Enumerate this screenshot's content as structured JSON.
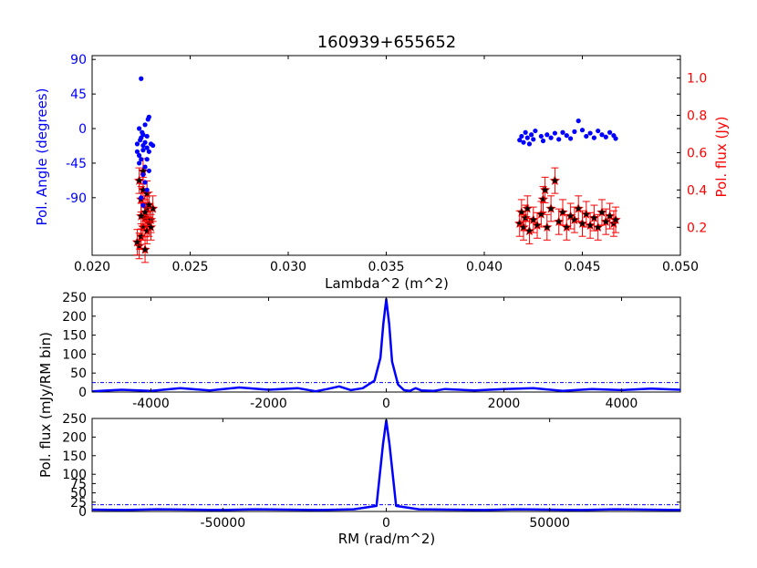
{
  "chart_data": [
    {
      "type": "scatter",
      "title": "160939+655652",
      "xlabel": "Lambda^2 (m^2)",
      "xlim": [
        0.02,
        0.05
      ],
      "x_ticks": [
        "0.020",
        "0.025",
        "0.030",
        "0.035",
        "0.040",
        "0.045",
        "0.050"
      ],
      "ylabel_left": "Pol. Angle (degrees)",
      "ylabel_left_color": "#0000ff",
      "ylim_left": [
        -165,
        95
      ],
      "y_ticks_left": [
        "90",
        "45",
        "0",
        "-45",
        "-90"
      ],
      "ylabel_right": "Pol. flux (Jy)",
      "ylabel_right_color": "#ff0000",
      "ylim_right": [
        0.05,
        1.12
      ],
      "y_ticks_right": [
        "0.2",
        "0.4",
        "0.6",
        "0.8",
        "1.0"
      ],
      "series": [
        {
          "color": "#0000ff",
          "marker": "dot",
          "points": [
            [
              0.0225,
              65
            ],
            [
              0.0224,
              0
            ],
            [
              0.02255,
              -5
            ],
            [
              0.0226,
              -8
            ],
            [
              0.02245,
              -15
            ],
            [
              0.0227,
              -18
            ],
            [
              0.0226,
              -22
            ],
            [
              0.0228,
              -10
            ],
            [
              0.02285,
              12
            ],
            [
              0.0229,
              15
            ],
            [
              0.0223,
              -30
            ],
            [
              0.0224,
              -35
            ],
            [
              0.0225,
              -40
            ],
            [
              0.0226,
              -28
            ],
            [
              0.0227,
              -50
            ],
            [
              0.0228,
              -25
            ],
            [
              0.0229,
              -30
            ],
            [
              0.023,
              -20
            ],
            [
              0.0231,
              -22
            ],
            [
              0.0226,
              -60
            ],
            [
              0.0227,
              -70
            ],
            [
              0.0228,
              -80
            ],
            [
              0.0225,
              -90
            ],
            [
              0.0226,
              -100
            ],
            [
              0.0224,
              -45
            ],
            [
              0.0229,
              -55
            ],
            [
              0.0223,
              -20
            ],
            [
              0.0228,
              -40
            ],
            [
              0.0225,
              -12
            ],
            [
              0.0227,
              5
            ],
            [
              0.0418,
              -15
            ],
            [
              0.0419,
              -10
            ],
            [
              0.042,
              -18
            ],
            [
              0.0421,
              -5
            ],
            [
              0.0422,
              -12
            ],
            [
              0.0423,
              -20
            ],
            [
              0.0424,
              -8
            ],
            [
              0.0425,
              -14
            ],
            [
              0.0426,
              -3
            ],
            [
              0.0429,
              -10
            ],
            [
              0.043,
              -16
            ],
            [
              0.0432,
              -8
            ],
            [
              0.0434,
              -12
            ],
            [
              0.0436,
              -6
            ],
            [
              0.0438,
              -14
            ],
            [
              0.044,
              -5
            ],
            [
              0.0442,
              -9
            ],
            [
              0.0444,
              -13
            ],
            [
              0.0446,
              -4
            ],
            [
              0.0448,
              10
            ],
            [
              0.045,
              -2
            ],
            [
              0.0452,
              -10
            ],
            [
              0.0454,
              -6
            ],
            [
              0.0456,
              -12
            ],
            [
              0.0458,
              -3
            ],
            [
              0.046,
              -8
            ],
            [
              0.0462,
              -11
            ],
            [
              0.0464,
              -5
            ],
            [
              0.0466,
              -9
            ],
            [
              0.0467,
              -13
            ]
          ]
        },
        {
          "color": "#ff0000",
          "marker": "star-errorbar",
          "points": [
            [
              0.0224,
              0.1
            ],
            [
              0.0225,
              0.15
            ],
            [
              0.0226,
              0.2
            ],
            [
              0.0227,
              0.25
            ],
            [
              0.0228,
              0.3
            ],
            [
              0.0229,
              0.22
            ],
            [
              0.0225,
              0.35
            ],
            [
              0.0226,
              0.4
            ],
            [
              0.0227,
              0.28
            ],
            [
              0.0228,
              0.18
            ],
            [
              0.023,
              0.24
            ],
            [
              0.0231,
              0.3
            ],
            [
              0.0224,
              0.45
            ],
            [
              0.0226,
              0.5
            ],
            [
              0.0228,
              0.38
            ],
            [
              0.0229,
              0.32
            ],
            [
              0.0223,
              0.12
            ],
            [
              0.0227,
              0.08
            ],
            [
              0.0225,
              0.26
            ],
            [
              0.023,
              0.2
            ],
            [
              0.0418,
              0.22
            ],
            [
              0.0419,
              0.28
            ],
            [
              0.042,
              0.2
            ],
            [
              0.0421,
              0.25
            ],
            [
              0.0422,
              0.3
            ],
            [
              0.0423,
              0.18
            ],
            [
              0.0425,
              0.24
            ],
            [
              0.0427,
              0.21
            ],
            [
              0.0429,
              0.27
            ],
            [
              0.043,
              0.35
            ],
            [
              0.0432,
              0.2
            ],
            [
              0.0434,
              0.3
            ],
            [
              0.0436,
              0.45
            ],
            [
              0.0438,
              0.23
            ],
            [
              0.044,
              0.28
            ],
            [
              0.0442,
              0.2
            ],
            [
              0.0444,
              0.26
            ],
            [
              0.0446,
              0.24
            ],
            [
              0.0448,
              0.3
            ],
            [
              0.045,
              0.22
            ],
            [
              0.0452,
              0.27
            ],
            [
              0.0454,
              0.21
            ],
            [
              0.0456,
              0.25
            ],
            [
              0.0458,
              0.2
            ],
            [
              0.046,
              0.28
            ],
            [
              0.0462,
              0.23
            ],
            [
              0.0464,
              0.26
            ],
            [
              0.0466,
              0.22
            ],
            [
              0.0467,
              0.24
            ],
            [
              0.0431,
              0.4
            ]
          ]
        }
      ]
    },
    {
      "type": "line",
      "xlim": [
        -5000,
        5000
      ],
      "x_ticks": [
        "-4000",
        "-2000",
        "0",
        "2000",
        "4000"
      ],
      "ylim": [
        0,
        250
      ],
      "y_ticks": [
        "0",
        "50",
        "100",
        "150",
        "200",
        "250"
      ],
      "threshold": 25,
      "series": [
        {
          "color": "#0000ff",
          "x": [
            -5000,
            -4500,
            -4000,
            -3500,
            -3000,
            -2500,
            -2000,
            -1500,
            -1200,
            -1000,
            -800,
            -600,
            -400,
            -300,
            -200,
            -100,
            -50,
            0,
            50,
            100,
            200,
            300,
            400,
            500,
            600,
            800,
            1000,
            1500,
            2000,
            2500,
            3000,
            3500,
            4000,
            4500,
            5000
          ],
          "y": [
            2,
            6,
            3,
            10,
            4,
            12,
            6,
            10,
            2,
            8,
            15,
            5,
            10,
            20,
            30,
            90,
            180,
            245,
            180,
            80,
            20,
            5,
            3,
            10,
            4,
            3,
            8,
            4,
            8,
            10,
            3,
            8,
            5,
            9,
            6
          ]
        }
      ]
    },
    {
      "type": "line",
      "xlabel": "RM (rad/m^2)",
      "xlim": [
        -90000,
        90000
      ],
      "x_ticks": [
        "-50000",
        "0",
        "50000"
      ],
      "ylim": [
        0,
        250
      ],
      "y_ticks": [
        "0",
        "25",
        "50",
        "75",
        "100",
        "150",
        "200",
        "250"
      ],
      "threshold": 18,
      "series": [
        {
          "color": "#0000ff",
          "x": [
            -90000,
            -80000,
            -70000,
            -60000,
            -50000,
            -40000,
            -30000,
            -20000,
            -10000,
            -3000,
            -1000,
            0,
            1000,
            3000,
            10000,
            20000,
            30000,
            40000,
            50000,
            60000,
            70000,
            80000,
            90000
          ],
          "y": [
            5,
            4,
            6,
            5,
            4,
            6,
            5,
            4,
            6,
            15,
            180,
            245,
            180,
            15,
            6,
            5,
            4,
            6,
            5,
            4,
            6,
            5,
            4
          ]
        }
      ]
    }
  ],
  "shared_ylabel": "Pol. flux (mJy/RM bin)"
}
